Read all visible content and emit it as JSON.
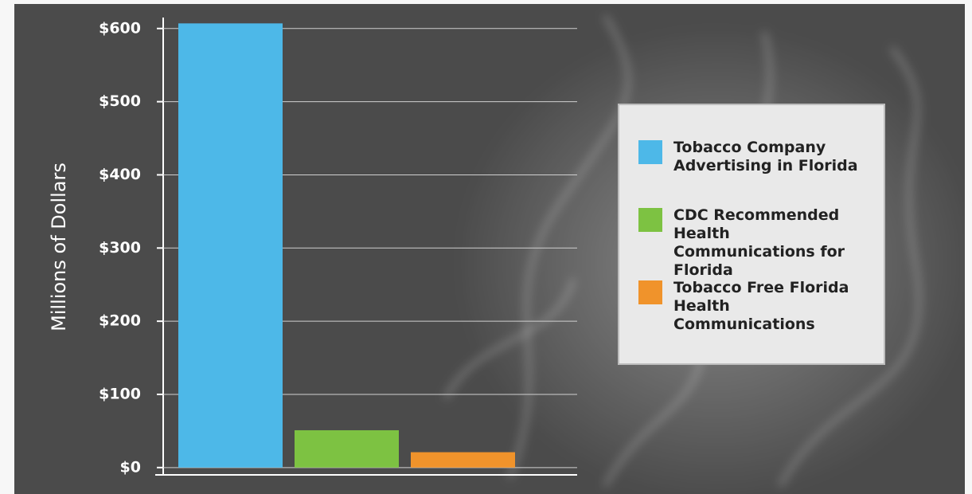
{
  "chart_data": {
    "type": "bar",
    "y_label": "Millions of Dollars",
    "categories": [
      null
    ],
    "series": [
      {
        "name": "Tobacco Company Advertising in Florida",
        "color": "#4db8e8",
        "values": [
          607
        ]
      },
      {
        "name": "CDC Recommended Health Communications for Florida",
        "color": "#7dc242",
        "values": [
          51
        ]
      },
      {
        "name": "Tobacco Free Florida Health Communications",
        "color": "#f0932b",
        "values": [
          21
        ]
      }
    ],
    "ylim": [
      -10,
      615
    ],
    "yticks": [
      {
        "value": 0,
        "label": "$0"
      },
      {
        "value": 100,
        "label": "$100"
      },
      {
        "value": 200,
        "label": "$200"
      },
      {
        "value": 300,
        "label": "$300"
      },
      {
        "value": 400,
        "label": "$400"
      },
      {
        "value": 500,
        "label": "$500"
      },
      {
        "value": 600,
        "label": "$600"
      }
    ],
    "grid": true
  }
}
